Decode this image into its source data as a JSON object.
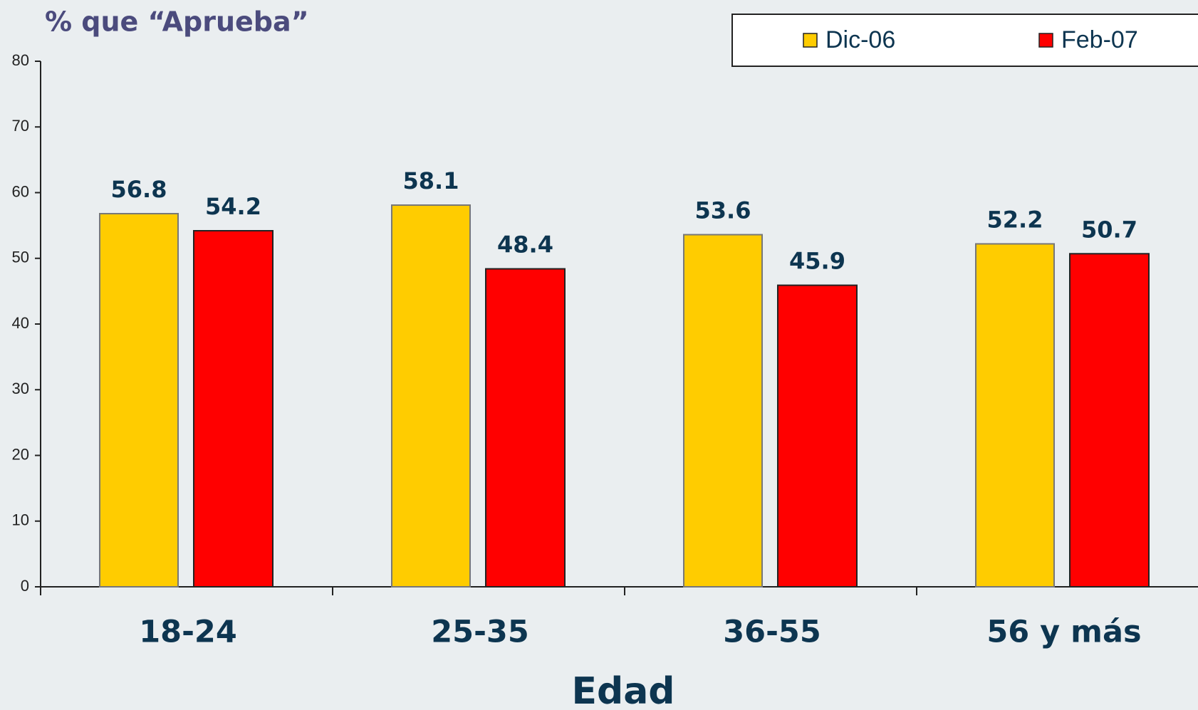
{
  "chart_data": {
    "type": "bar",
    "title": "% que “Aprueba”",
    "xlabel": "Edad",
    "categories": [
      "18-24",
      "25-35",
      "36-55",
      "56 y más"
    ],
    "series": [
      {
        "name": "Dic-06",
        "color": "#ffcc00",
        "values": [
          56.8,
          58.1,
          53.6,
          52.2
        ]
      },
      {
        "name": "Feb-07",
        "color": "#ff0000",
        "values": [
          54.2,
          48.4,
          45.9,
          50.7
        ]
      }
    ],
    "ylim": [
      0,
      80
    ],
    "yticks": [
      0,
      10,
      20,
      30,
      40,
      50,
      60,
      70,
      80
    ],
    "legend": "top-right"
  }
}
